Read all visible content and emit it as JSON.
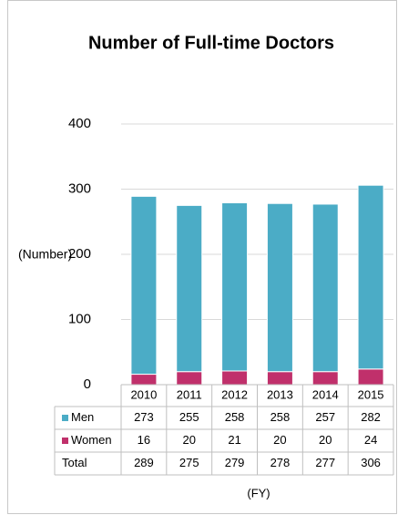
{
  "chart_data": {
    "type": "stacked_bar",
    "title": "Number of Full-time Doctors",
    "y_axis_label": "(Number)",
    "x_axis_label": "(FY)",
    "categories": [
      "2010",
      "2011",
      "2012",
      "2013",
      "2014",
      "2015"
    ],
    "series": [
      {
        "name": "Women",
        "color": "#c0306b",
        "values": [
          16,
          20,
          21,
          20,
          20,
          24
        ]
      },
      {
        "name": "Men",
        "color": "#4bacc6",
        "values": [
          273,
          255,
          258,
          258,
          257,
          282
        ]
      }
    ],
    "ylim": [
      0,
      400
    ],
    "yticks": [
      0,
      100,
      200,
      300,
      400
    ],
    "grid": true,
    "table": {
      "total_label": "Total",
      "totals": [
        289,
        275,
        279,
        278,
        277,
        306
      ]
    }
  }
}
